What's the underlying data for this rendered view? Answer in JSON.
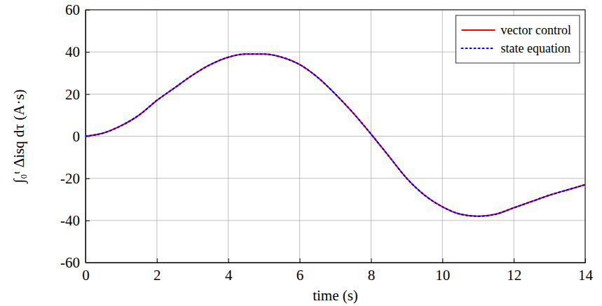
{
  "chart_data": {
    "type": "line",
    "x_label": "time (s)",
    "y_label": "∫₀ᵗ Δisq dτ   (A·s)",
    "x": [
      0,
      0.5,
      1,
      1.5,
      2,
      2.5,
      3,
      3.5,
      4,
      4.5,
      5,
      5.5,
      6,
      6.5,
      7,
      7.5,
      8,
      8.5,
      9,
      9.5,
      10,
      10.5,
      11,
      11.5,
      12,
      12.5,
      13,
      13.5,
      14
    ],
    "series": [
      {
        "name": "vector control",
        "color": "#ff0000",
        "line_style": "solid",
        "values": [
          0,
          1.5,
          5,
          10,
          17,
          23,
          29,
          34,
          37.5,
          39,
          39,
          37.5,
          34,
          28,
          20,
          11,
          1,
          -9.5,
          -20,
          -28,
          -33.5,
          -37,
          -38,
          -37,
          -34,
          -31,
          -28,
          -25.5,
          -23
        ]
      },
      {
        "name": "state equation",
        "color": "#0000ff",
        "line_style": "dotted",
        "values": [
          0,
          1.5,
          5,
          10,
          17,
          23,
          29,
          34,
          37.5,
          39,
          39,
          37.5,
          34,
          28,
          20,
          11,
          1,
          -9.5,
          -20,
          -28,
          -33.5,
          -37,
          -38,
          -37,
          -34,
          -31,
          -28,
          -25.5,
          -23
        ]
      }
    ],
    "xlim": [
      0,
      14
    ],
    "xticks": [
      0,
      2,
      4,
      6,
      8,
      10,
      12,
      14
    ],
    "ylim": [
      -60,
      60
    ],
    "yticks": [
      -60,
      -40,
      -20,
      0,
      20,
      40,
      60
    ],
    "grid": true,
    "legend": "top-right"
  }
}
